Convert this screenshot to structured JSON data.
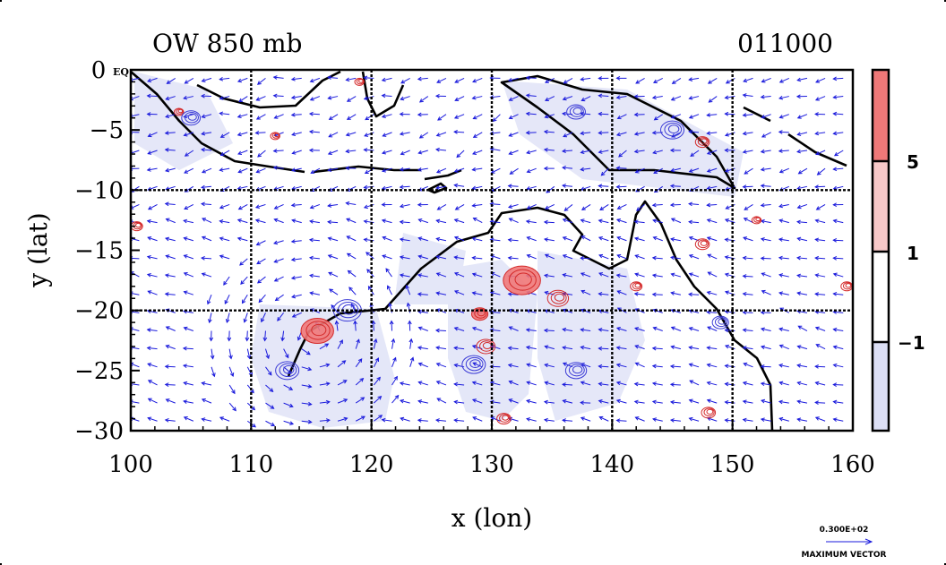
{
  "chart_data": {
    "type": "contour-vector-map",
    "title_left": "OW 850 mb",
    "title_right": "011000",
    "xlabel": "x (lon)",
    "ylabel": "y (lat)",
    "xlim": [
      100,
      160
    ],
    "ylim": [
      -30,
      0
    ],
    "x_ticks": [
      100,
      110,
      120,
      130,
      140,
      150,
      160
    ],
    "y_ticks": [
      0,
      -5,
      -10,
      -15,
      -20,
      -25,
      -30
    ],
    "y_tick_labels": [
      "0 EQ",
      "−5",
      "−10",
      "−15",
      "−20",
      "−25",
      "−30"
    ],
    "grid_lines_lon": [
      110,
      120,
      130,
      140,
      150
    ],
    "grid_lines_lat": [
      -10,
      -20
    ],
    "colorbar": {
      "levels": [
        -1,
        1,
        5
      ],
      "level_labels": [
        "−1",
        "1",
        "5"
      ],
      "colors": [
        "#dcdff5",
        "#ffffff",
        "#f7c8c8",
        "#ef7878"
      ]
    },
    "vector_legend": {
      "value_label": "0.300E+02",
      "caption": "MAXIMUM VECTOR"
    },
    "colors": {
      "coast": "#000000",
      "vector": "#1a1adc",
      "negative_contour": "#3b3bd6",
      "positive_contour": "#d42a2a",
      "positive_fill": "#ef7878",
      "negative_fill": "#e0e3f7"
    }
  }
}
